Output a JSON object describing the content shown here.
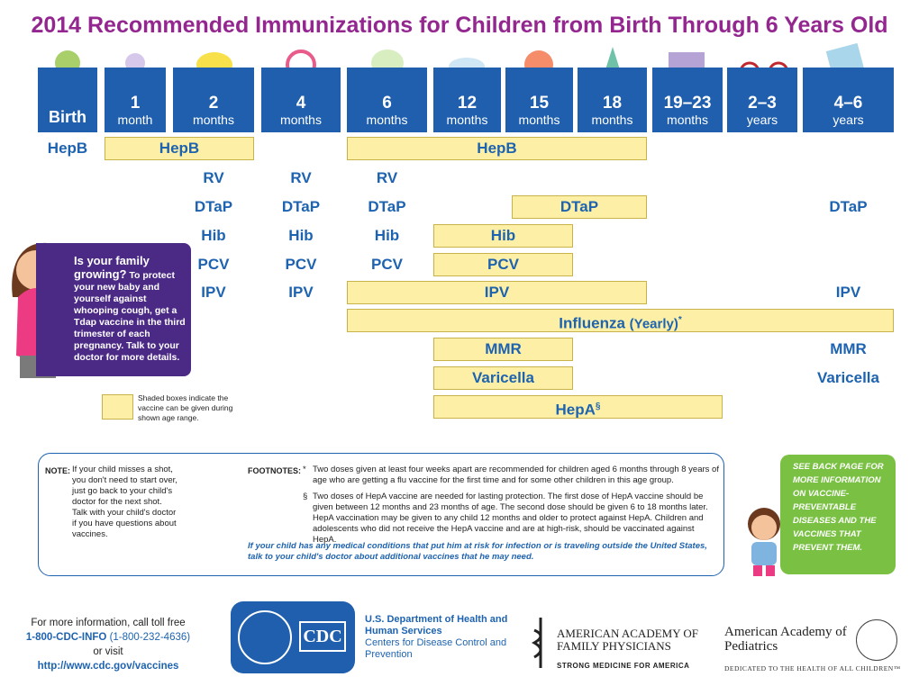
{
  "title": "2014 Recommended Immunizations for Children from Birth Through 6 Years Old",
  "ages": [
    {
      "label": "Birth"
    },
    {
      "number": "1",
      "unit": "month"
    },
    {
      "number": "2",
      "unit": "months"
    },
    {
      "number": "4",
      "unit": "months"
    },
    {
      "number": "6",
      "unit": "months"
    },
    {
      "number": "12",
      "unit": "months"
    },
    {
      "number": "15",
      "unit": "months"
    },
    {
      "number": "18",
      "unit": "months"
    },
    {
      "number": "19–23",
      "unit": "months"
    },
    {
      "number": "2–3",
      "unit": "years"
    },
    {
      "number": "4–6",
      "unit": "years"
    }
  ],
  "schedule": {
    "hepb": [
      "HepB",
      "HepB",
      "HepB"
    ],
    "rv": [
      "RV",
      "RV",
      "RV"
    ],
    "dtap": [
      "DTaP",
      "DTaP",
      "DTaP",
      "DTaP",
      "DTaP"
    ],
    "hib": [
      "Hib",
      "Hib",
      "Hib",
      "Hib"
    ],
    "pcv": [
      "PCV",
      "PCV",
      "PCV",
      "PCV"
    ],
    "ipv": [
      "IPV",
      "IPV",
      "IPV",
      "IPV"
    ],
    "influenza": {
      "name": "Influenza",
      "note": "(Yearly)",
      "mark": "*"
    },
    "mmr": [
      "MMR",
      "MMR"
    ],
    "varicella": [
      "Varicella",
      "Varicella"
    ],
    "hepa": {
      "name": "HepA",
      "mark": "§"
    }
  },
  "callout": {
    "heading": "Is your family growing?",
    "body": "To protect your new baby and yourself against whooping cough, get a Tdap vaccine in the third trimester of each pregnancy. Talk to your doctor for more details."
  },
  "legend": "Shaded boxes indicate the vaccine can be given during shown age range.",
  "note": {
    "label": "NOTE:",
    "text": "If your child misses a shot, you don't need to start over, just go back to your child's doctor for the next shot. Talk with your child's doctor if you have questions about vaccines."
  },
  "footnotes": {
    "label": "FOOTNOTES:",
    "items": [
      {
        "mark": "*",
        "text": "Two doses given at least four weeks apart are recommended for children aged 6 months through 8 years of age who are getting a flu vaccine for the first time and for some other children in this age group."
      },
      {
        "mark": "§",
        "text": "Two doses of HepA vaccine are needed for lasting protection. The first dose of HepA vaccine should be given between 12 months and 23 months of age. The second dose should be given 6 to 18 months later. HepA vaccination may be given to any child 12 months and older to protect against HepA. Children and adolescents who did not receive the HepA vaccine and are at high-risk, should be vaccinated against HepA."
      }
    ],
    "closing": "If your child has any medical conditions that put him at risk for infection or is traveling outside the United States, talk to your child's doctor about additional vaccines that he may need."
  },
  "side_note": "See back page for more information on vaccine-preventable diseases and the vaccines that prevent them.",
  "footer": {
    "call": "For more information, call toll free",
    "phone": "1-800-CDC-INFO",
    "phone_alt": "(1-800-232-4636)",
    "or": "or visit",
    "url": "http://www.cdc.gov/vaccines",
    "cdc": "CDC",
    "hhs": "U.S. Department of Health and Human Services",
    "cdc_name": "Centers for Disease Control and Prevention",
    "aafp": "AMERICAN ACADEMY OF FAMILY PHYSICIANS",
    "aafp_tag": "STRONG MEDICINE FOR AMERICA",
    "aap": "American Academy of Pediatrics",
    "aap_tag": "DEDICATED TO THE HEALTH OF ALL CHILDREN™"
  }
}
